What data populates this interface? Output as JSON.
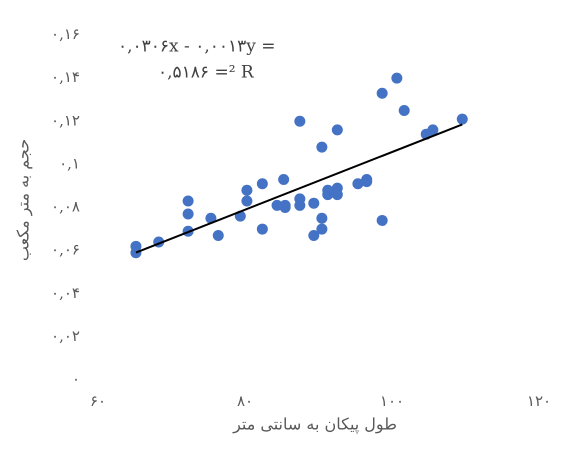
{
  "chart_data": {
    "type": "scatter",
    "x_label": "طول پیکان به سانتی متر",
    "y_label": "حجم به متر مکعب",
    "annotations": [
      "۰,۰۳۰۶x - ۰,۰۰۱۳y =",
      "۰,۵۱۸۶ =² R"
    ],
    "x": [
      63.8,
      63.8,
      66.9,
      70.9,
      70.9,
      70.9,
      74.0,
      75.0,
      78.0,
      78.9,
      78.9,
      81.0,
      81.0,
      83.0,
      83.9,
      84.1,
      84.1,
      86.1,
      86.1,
      86.1,
      88.0,
      88.0,
      89.1,
      89.1,
      89.1,
      89.9,
      89.9,
      91.2,
      91.2,
      91.2,
      94.0,
      95.2,
      95.2,
      97.3,
      97.3,
      99.3,
      100.3,
      103.3,
      104.2,
      108.2
    ],
    "y": [
      0.062,
      0.059,
      0.064,
      0.083,
      0.077,
      0.069,
      0.075,
      0.067,
      0.076,
      0.088,
      0.083,
      0.091,
      0.07,
      0.081,
      0.093,
      0.081,
      0.08,
      0.12,
      0.084,
      0.081,
      0.082,
      0.067,
      0.108,
      0.075,
      0.07,
      0.088,
      0.086,
      0.116,
      0.089,
      0.086,
      0.091,
      0.093,
      0.092,
      0.133,
      0.074,
      0.14,
      0.125,
      0.114,
      0.116,
      0.121
    ],
    "color": "#4472c4",
    "trendline_color": "#000000",
    "xlim": [
      60,
      120
    ],
    "ylim": [
      0,
      0.16
    ],
    "xticks": [
      {
        "value": 60,
        "label": "۶۰"
      },
      {
        "value": 80,
        "label": "۸۰"
      },
      {
        "value": 100,
        "label": "۱۰۰"
      },
      {
        "value": 120,
        "label": "۱۲۰"
      }
    ],
    "yticks": [
      {
        "value": 0,
        "label": "۰"
      },
      {
        "value": 0.02,
        "label": "۰,۰۲"
      },
      {
        "value": 0.04,
        "label": "۰,۰۴"
      },
      {
        "value": 0.06,
        "label": "۰,۰۶"
      },
      {
        "value": 0.08,
        "label": "۰,۰۸"
      },
      {
        "value": 0.1,
        "label": "۰,۱"
      },
      {
        "value": 0.12,
        "label": "۰,۱۲"
      },
      {
        "value": 0.14,
        "label": "۰,۱۴"
      },
      {
        "value": 0.16,
        "label": "۰,۱۶"
      }
    ],
    "grid": false
  }
}
